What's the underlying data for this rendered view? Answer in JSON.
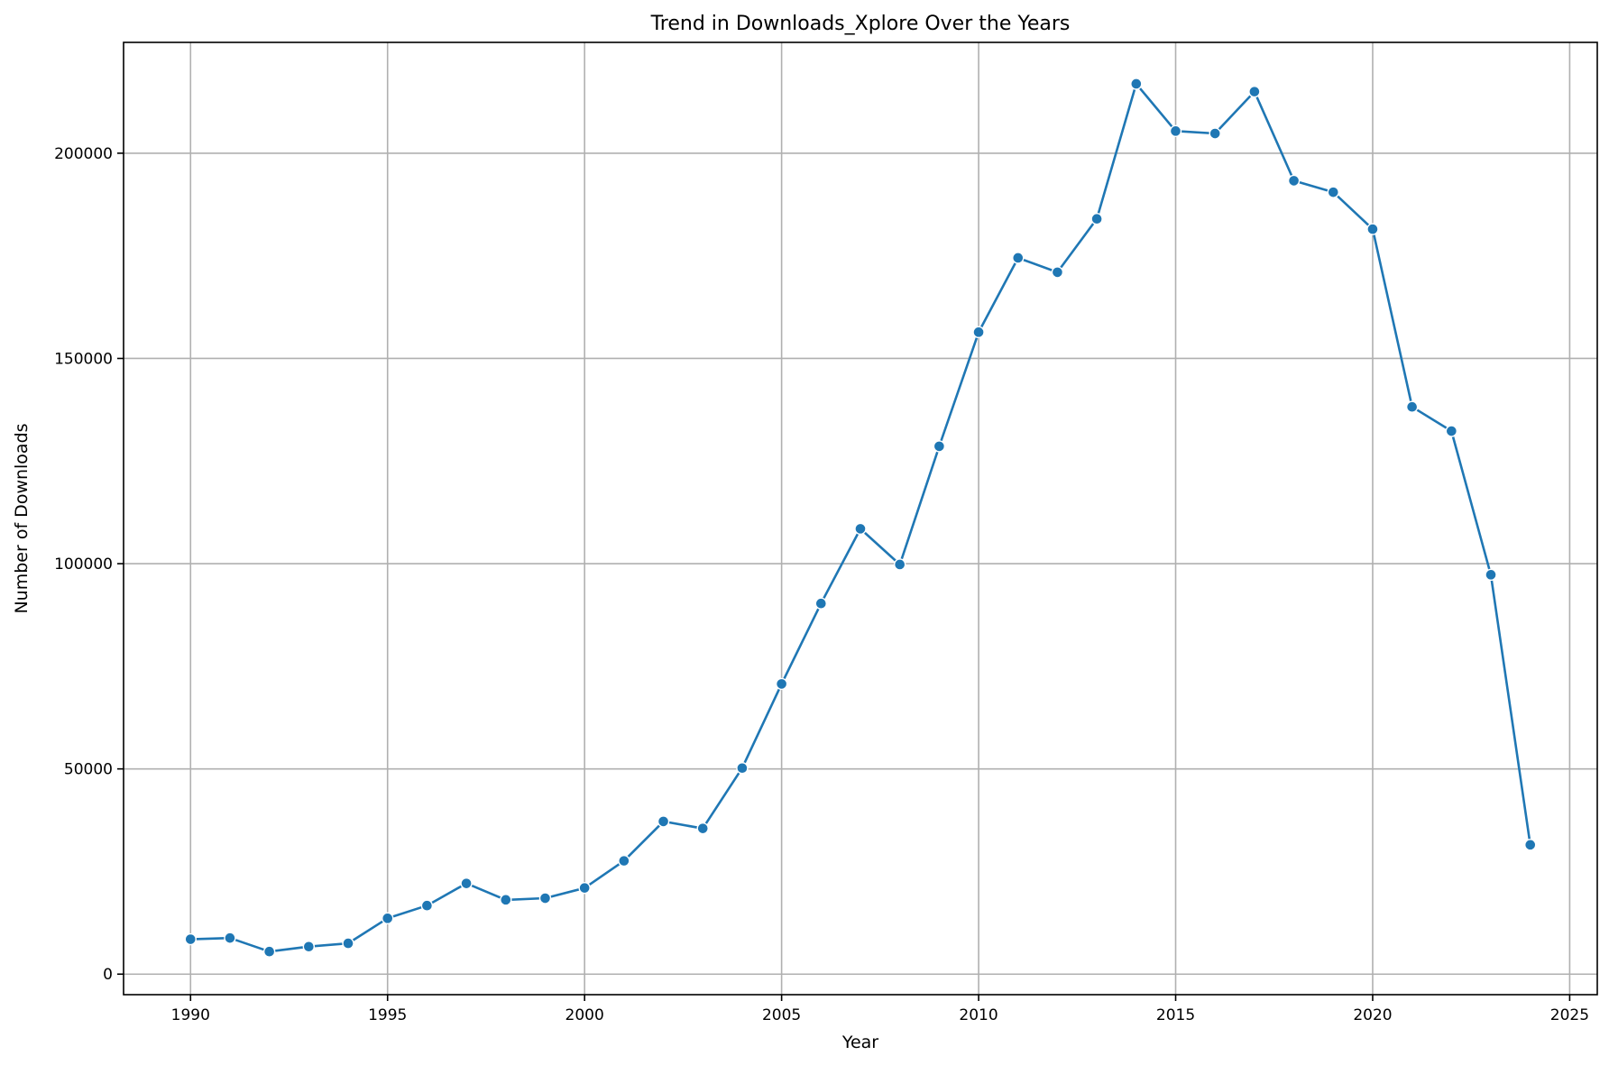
{
  "chart_data": {
    "type": "line",
    "title": "Trend in Downloads_Xplore Over the Years",
    "xlabel": "Year",
    "ylabel": "Number of Downloads",
    "xlim": [
      1988.3,
      2025.7
    ],
    "ylim": [
      -5000,
      227000
    ],
    "xticks": [
      1990,
      1995,
      2000,
      2005,
      2010,
      2015,
      2020,
      2025
    ],
    "yticks": [
      0,
      50000,
      100000,
      150000,
      200000
    ],
    "grid": true,
    "color": "#1f77b4",
    "marker": "circle",
    "series": [
      {
        "x": [
          1990,
          1991,
          1992,
          1993,
          1994,
          1995,
          1996,
          1997,
          1998,
          1999,
          2000,
          2001,
          2002,
          2003,
          2004,
          2005,
          2006,
          2007,
          2008,
          2009,
          2010,
          2011,
          2012,
          2013,
          2014,
          2015,
          2016,
          2017,
          2018,
          2019,
          2020,
          2021,
          2022,
          2023,
          2024
        ],
        "values": [
          8500,
          8800,
          5500,
          6700,
          7500,
          13600,
          16700,
          22100,
          18100,
          18500,
          21000,
          27600,
          37200,
          35500,
          50200,
          70700,
          90300,
          108500,
          99800,
          128600,
          156400,
          174500,
          171000,
          184000,
          216900,
          205400,
          204800,
          215000,
          193300,
          190500,
          181500,
          138200,
          132300,
          97300,
          31500
        ]
      }
    ]
  }
}
